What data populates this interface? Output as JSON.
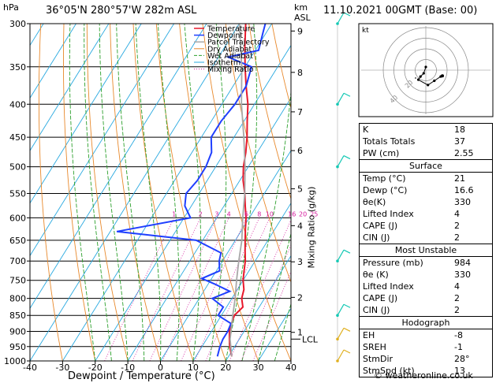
{
  "header": {
    "location": "36°05'N 280°57'W 282m ASL",
    "datetime": "11.10.2021 00GMT (Base: 00)",
    "hpa_label": "hPa",
    "km_label": "km",
    "asl_label": "ASL"
  },
  "chart_data": {
    "type": "line",
    "title": "36°05'N 280°57'W 282m ASL",
    "xlabel": "Dewpoint / Temperature (°C)",
    "ylabel_right": "Mixing Ratio (g/kg)",
    "x_ticks": [
      -40,
      -30,
      -20,
      -10,
      0,
      10,
      20,
      30,
      40
    ],
    "xlim": [
      -40,
      40
    ],
    "ylim": [
      1000,
      300
    ],
    "y_scale": "log",
    "pressure_ticks": [
      300,
      350,
      400,
      450,
      500,
      550,
      600,
      650,
      700,
      750,
      800,
      850,
      900,
      950,
      1000
    ],
    "km_ticks": [
      {
        "label": "9",
        "p": 308
      },
      {
        "label": "8",
        "p": 357
      },
      {
        "label": "7",
        "p": 411
      },
      {
        "label": "6",
        "p": 472
      },
      {
        "label": "5",
        "p": 541
      },
      {
        "label": "4",
        "p": 617
      },
      {
        "label": "3",
        "p": 702
      },
      {
        "label": "2",
        "p": 797
      },
      {
        "label": "1",
        "p": 903
      }
    ],
    "lcl": {
      "label": "LCL",
      "p": 925
    },
    "mixing_ratio_labels": [
      "1",
      "2",
      "3",
      "4",
      "6",
      "8",
      "10",
      "16",
      "20",
      "25"
    ],
    "mixing_ratio_values": [
      1,
      2,
      3,
      4,
      6,
      8,
      10,
      16,
      20,
      25
    ],
    "legend": [
      "Temperature",
      "Dewpoint",
      "Parcel Trajectory",
      "Dry Adiabat",
      "Wet Adiabat",
      "Isotherm",
      "Mixing Ratio"
    ],
    "legend_position": "top-left",
    "series": [
      {
        "name": "Temperature",
        "color": "#e8192c",
        "points": [
          [
            984,
            21
          ],
          [
            950,
            18.5
          ],
          [
            925,
            17
          ],
          [
            900,
            15.5
          ],
          [
            870,
            14.5
          ],
          [
            850,
            14
          ],
          [
            825,
            15
          ],
          [
            800,
            13
          ],
          [
            775,
            12
          ],
          [
            750,
            10
          ],
          [
            725,
            8.5
          ],
          [
            700,
            7
          ],
          [
            675,
            5
          ],
          [
            650,
            3
          ],
          [
            625,
            1
          ],
          [
            600,
            -1
          ],
          [
            575,
            -3.5
          ],
          [
            550,
            -6
          ],
          [
            525,
            -9
          ],
          [
            500,
            -11.5
          ],
          [
            475,
            -13.5
          ],
          [
            450,
            -16
          ],
          [
            425,
            -19
          ],
          [
            400,
            -22
          ],
          [
            375,
            -26
          ],
          [
            350,
            -30
          ],
          [
            325,
            -34
          ],
          [
            300,
            -38
          ]
        ]
      },
      {
        "name": "Dewpoint",
        "color": "#1f3fff",
        "points": [
          [
            984,
            16.6
          ],
          [
            950,
            15.5
          ],
          [
            925,
            15
          ],
          [
            900,
            15
          ],
          [
            875,
            14.5
          ],
          [
            850,
            9
          ],
          [
            825,
            9
          ],
          [
            800,
            4
          ],
          [
            780,
            8
          ],
          [
            760,
            2
          ],
          [
            745,
            -3
          ],
          [
            725,
            1
          ],
          [
            700,
            -1
          ],
          [
            680,
            -2
          ],
          [
            650,
            -12
          ],
          [
            630,
            -38
          ],
          [
            600,
            -18
          ],
          [
            575,
            -22
          ],
          [
            550,
            -24
          ],
          [
            525,
            -23
          ],
          [
            500,
            -23
          ],
          [
            475,
            -24
          ],
          [
            450,
            -27
          ],
          [
            425,
            -27
          ],
          [
            400,
            -26
          ],
          [
            375,
            -26
          ],
          [
            350,
            -28
          ],
          [
            338,
            -37
          ],
          [
            330,
            -29
          ],
          [
            310,
            -31
          ],
          [
            300,
            -32
          ]
        ]
      },
      {
        "name": "Parcel Trajectory",
        "color": "#a8a8a8",
        "points": [
          [
            984,
            21
          ],
          [
            925,
            17.2
          ],
          [
            900,
            16
          ],
          [
            850,
            13.5
          ],
          [
            800,
            11
          ],
          [
            750,
            8
          ],
          [
            700,
            5
          ],
          [
            650,
            2
          ],
          [
            600,
            -2
          ],
          [
            550,
            -6
          ],
          [
            500,
            -11
          ],
          [
            450,
            -17
          ],
          [
            400,
            -24
          ],
          [
            350,
            -31
          ],
          [
            300,
            -40
          ]
        ]
      }
    ]
  },
  "hodograph": {
    "label": "kt",
    "ring_labels": [
      "20",
      "40"
    ],
    "points": [
      [
        0,
        3
      ],
      [
        -2,
        -3
      ],
      [
        -5,
        -6
      ],
      [
        -7,
        -9
      ],
      [
        2,
        -14
      ],
      [
        8,
        -10
      ],
      [
        14,
        -6
      ]
    ]
  },
  "indices": {
    "rows": [
      {
        "label": "K",
        "value": "18"
      },
      {
        "label": "Totals Totals",
        "value": "37"
      },
      {
        "label": "PW (cm)",
        "value": "2.55"
      }
    ],
    "surface": {
      "title": "Surface",
      "rows": [
        {
          "label": "Temp (°C)",
          "value": "21"
        },
        {
          "label": "Dewp (°C)",
          "value": "16.6"
        },
        {
          "label": "θe(K)",
          "value": "330"
        },
        {
          "label": "Lifted Index",
          "value": "4"
        },
        {
          "label": "CAPE (J)",
          "value": "2"
        },
        {
          "label": "CIN (J)",
          "value": "2"
        }
      ]
    },
    "most_unstable": {
      "title": "Most Unstable",
      "rows": [
        {
          "label": "Pressure (mb)",
          "value": "984"
        },
        {
          "label": "θe (K)",
          "value": "330"
        },
        {
          "label": "Lifted Index",
          "value": "4"
        },
        {
          "label": "CAPE (J)",
          "value": "2"
        },
        {
          "label": "CIN (J)",
          "value": "2"
        }
      ]
    },
    "hodograph_stats": {
      "title": "Hodograph",
      "rows": [
        {
          "label": "EH",
          "value": "-8"
        },
        {
          "label": "SREH",
          "value": "-1"
        },
        {
          "label": "StmDir",
          "value": "28°"
        },
        {
          "label": "StmSpd (kt)",
          "value": "13"
        }
      ]
    }
  },
  "colors": {
    "temperature": "#e8192c",
    "dewpoint": "#1f3fff",
    "parcel": "#a8a8a8",
    "dry_adiabat": "#e8892c",
    "wet_adiabat": "#2ca02c",
    "isotherm": "#29a9e0",
    "mixing_ratio": "#d4189c",
    "wind_barb": "#14c8b4"
  },
  "footer": {
    "copyright": "© weatheronline.co.uk"
  }
}
